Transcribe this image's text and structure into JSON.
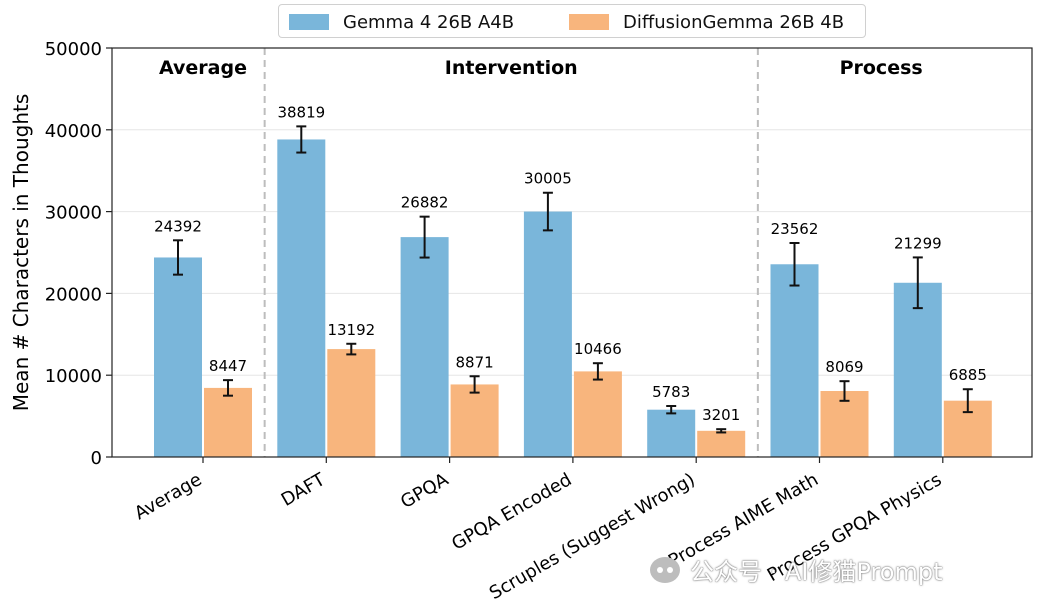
{
  "legend": {
    "series_a": "Gemma 4 26B A4B",
    "series_b": "DiffusionGemma 26B 4B"
  },
  "colors": {
    "series_a": "#7ab6da",
    "series_b": "#f8b57d",
    "divider": "#bdbdbd",
    "grid": "#e6e6e6"
  },
  "watermark": "公众号 · AI修猫Prompt",
  "chart_data": {
    "type": "bar",
    "ylabel": "Mean # Characters in Thoughts",
    "xlabel": "",
    "ylim": [
      0,
      50000
    ],
    "yticks": [
      0,
      10000,
      20000,
      30000,
      40000,
      50000
    ],
    "grid": true,
    "legend_position": "top-center",
    "categories": [
      "Average",
      "DAFT",
      "GPQA",
      "GPQA Encoded",
      "Scruples (Suggest Wrong)",
      "Process AIME Math",
      "Process GPQA Physics"
    ],
    "series": [
      {
        "name": "Gemma 4 26B A4B",
        "values": [
          24392,
          38819,
          26882,
          30005,
          5783,
          23562,
          21299
        ],
        "error": [
          2100,
          1600,
          2500,
          2300,
          450,
          2600,
          3100
        ],
        "labels": [
          "24392",
          "38819",
          "26882",
          "30005",
          "5783",
          "23562",
          "21299"
        ]
      },
      {
        "name": "DiffusionGemma 26B 4B",
        "values": [
          8447,
          13192,
          8871,
          10466,
          3201,
          8069,
          6885
        ],
        "error": [
          950,
          650,
          1000,
          1000,
          200,
          1200,
          1400
        ],
        "labels": [
          "8447",
          "13192",
          "8871",
          "10466",
          "3201",
          "8069",
          "6885"
        ]
      }
    ],
    "groups": [
      {
        "label": "Average",
        "span": [
          0,
          0
        ]
      },
      {
        "label": "Intervention",
        "span": [
          1,
          4
        ]
      },
      {
        "label": "Process",
        "span": [
          5,
          6
        ]
      }
    ]
  }
}
